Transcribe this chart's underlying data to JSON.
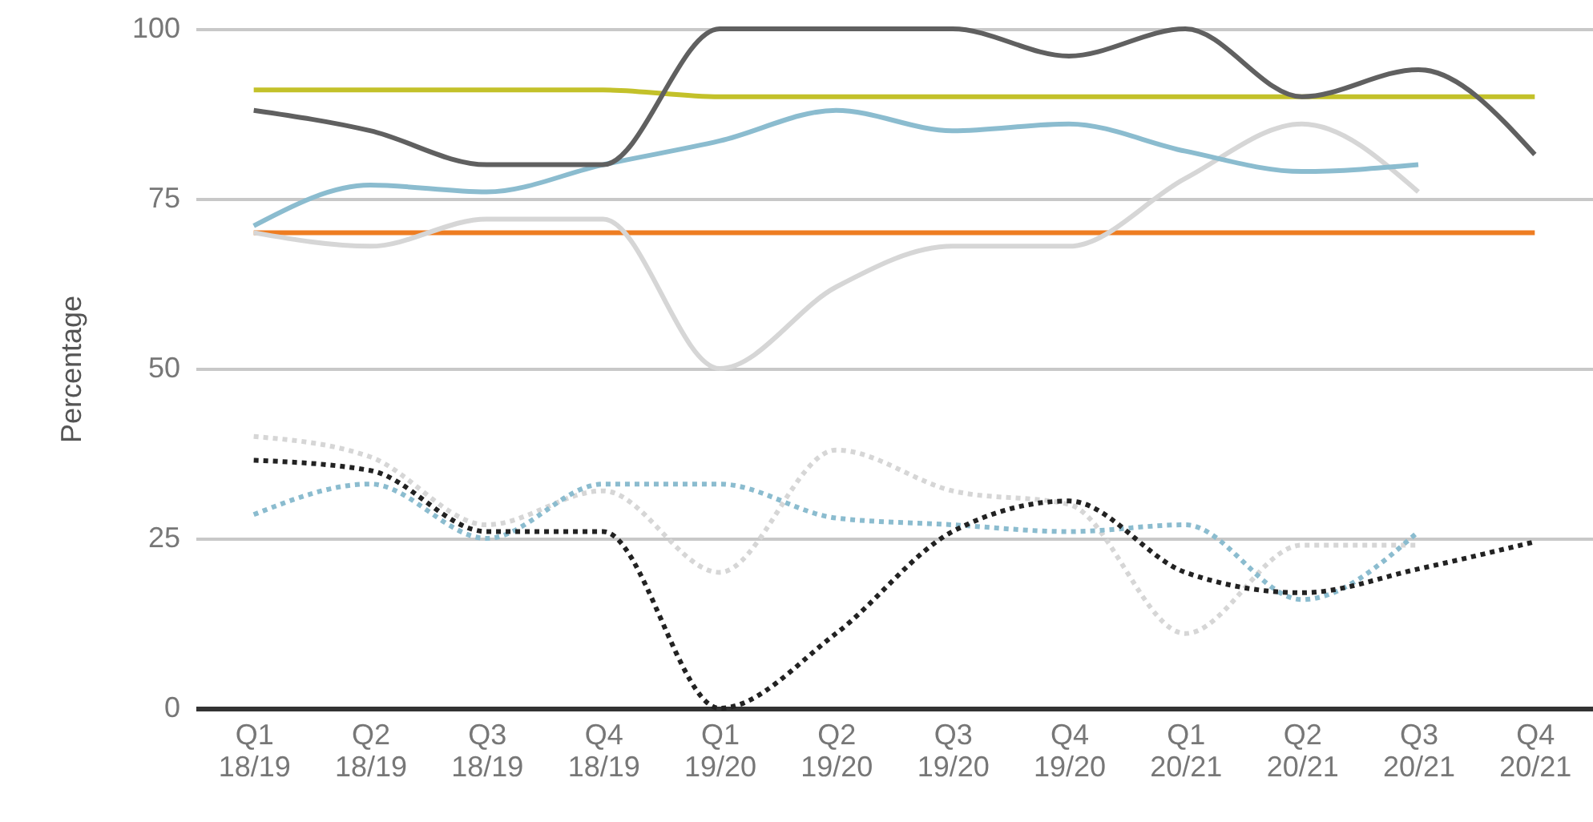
{
  "chart_data": {
    "type": "line",
    "ylabel": "Percentage",
    "categories": [
      "Q1 18/19",
      "Q2 18/19",
      "Q3 18/19",
      "Q4 18/19",
      "Q1 19/20",
      "Q2 19/20",
      "Q3 19/20",
      "Q4 19/20",
      "Q1 20/21",
      "Q2 20/21",
      "Q3 20/21",
      "Q4 20/21"
    ],
    "ylim": [
      0,
      100
    ],
    "yticks": [
      0,
      25,
      50,
      75,
      100
    ],
    "grid": "y",
    "series": [
      {
        "color": "#ee7d22",
        "line_style": "solid",
        "values": [
          70,
          70,
          70,
          70,
          70,
          70,
          70,
          70,
          70,
          70,
          70,
          70
        ]
      },
      {
        "color": "#c3c12a",
        "line_style": "solid",
        "values": [
          91,
          91,
          91,
          91,
          90,
          90,
          90,
          90,
          90,
          90,
          90,
          90
        ]
      },
      {
        "color": "#d6d6d6",
        "line_style": "solid",
        "values": [
          70,
          68,
          72,
          72,
          50,
          62,
          68,
          68,
          78,
          86,
          76,
          null
        ]
      },
      {
        "color": "#8bbccf",
        "line_style": "solid",
        "values": [
          71,
          77,
          76,
          80,
          83.5,
          88,
          85,
          86,
          82,
          79,
          80,
          null
        ]
      },
      {
        "color": "#606060",
        "line_style": "solid",
        "values": [
          88,
          85,
          80,
          80,
          100,
          100,
          100,
          96,
          100,
          90,
          94,
          81.5
        ]
      },
      {
        "color": "#d6d6d6",
        "line_style": "dotted",
        "values": [
          40,
          37,
          27,
          32,
          20,
          38,
          32,
          30,
          11,
          24,
          24,
          null
        ]
      },
      {
        "color": "#8bbccf",
        "line_style": "dotted",
        "values": [
          28.5,
          33,
          25,
          33,
          33,
          28,
          27,
          26,
          27,
          16,
          26,
          null
        ]
      },
      {
        "color": "#222222",
        "line_style": "dotted",
        "values": [
          36.5,
          35,
          26,
          26,
          0,
          11,
          26,
          30.5,
          20,
          17,
          20.5,
          24.5
        ]
      }
    ]
  }
}
